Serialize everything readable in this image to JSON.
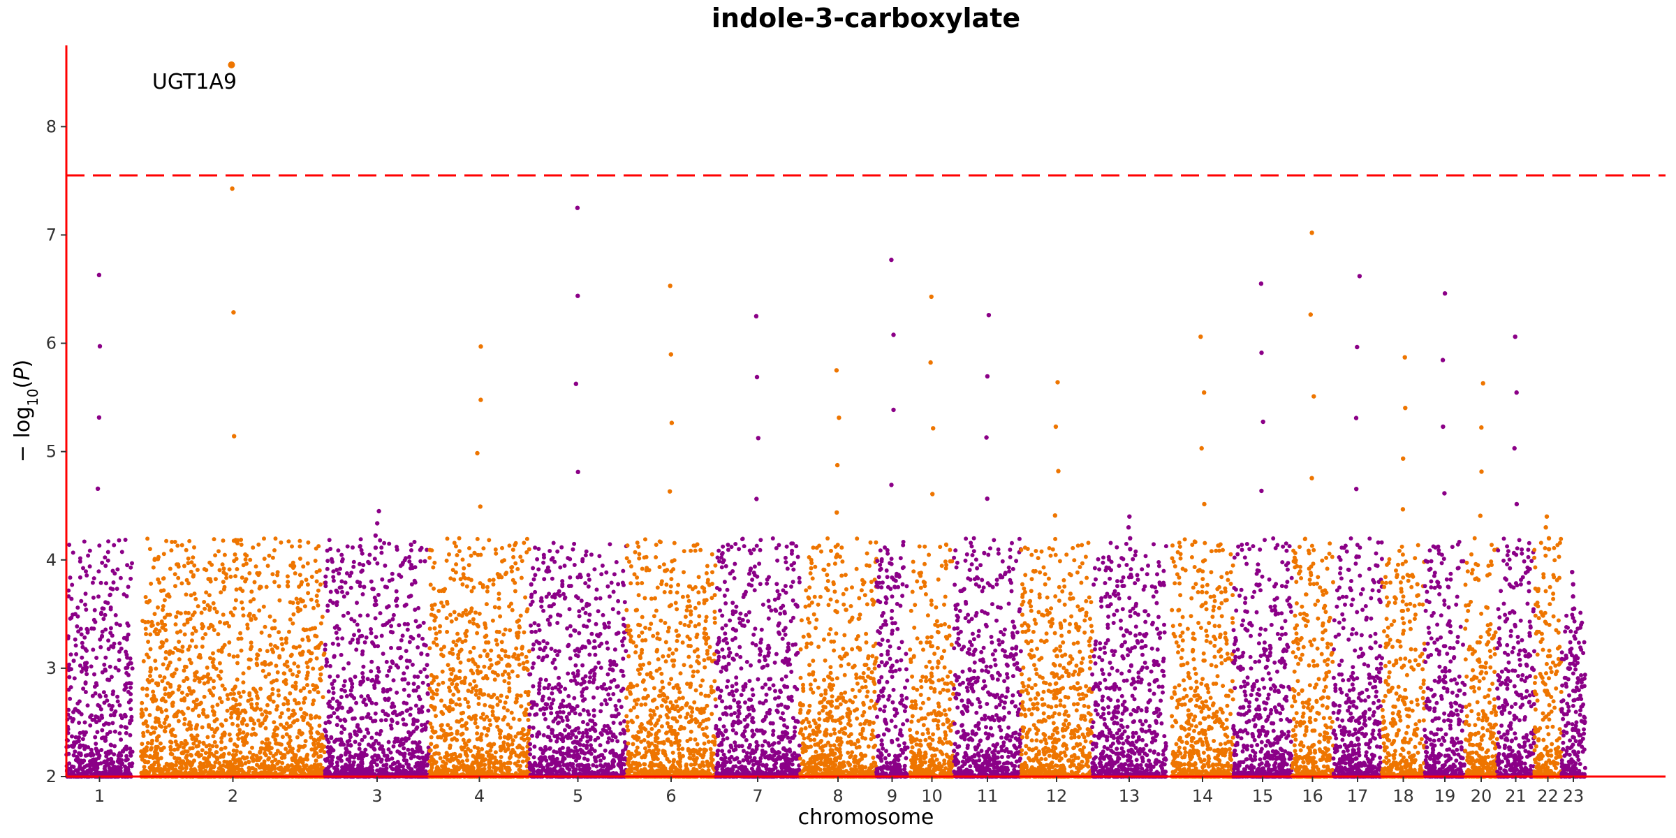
{
  "chart_data": {
    "type": "scatter",
    "title": "indole-3-carboxylate",
    "xlabel": "chromosome",
    "ylabel": "−log10(P)",
    "ylim": [
      2.0,
      8.75
    ],
    "yticks": [
      2,
      3,
      4,
      5,
      6,
      7,
      8
    ],
    "significance_threshold": 7.55,
    "grid": false,
    "colors": {
      "odd": "#8B0087",
      "even": "#EE7500",
      "axis": "#FF0000",
      "threshold": "#FF0000"
    },
    "chromosomes": [
      "1",
      "2",
      "3",
      "4",
      "5",
      "6",
      "7",
      "8",
      "9",
      "10",
      "11",
      "12",
      "13",
      "14",
      "15",
      "16",
      "17",
      "18",
      "19",
      "20",
      "21",
      "22",
      "23"
    ],
    "chromosome_max_y": [
      6.63,
      8.57,
      4.45,
      5.97,
      7.25,
      6.53,
      6.25,
      5.75,
      6.77,
      6.43,
      6.26,
      5.64,
      4.4,
      6.06,
      6.55,
      7.02,
      6.62,
      5.87,
      6.46,
      5.63,
      6.06,
      4.4,
      3.55
    ],
    "annotations": [
      {
        "label": "UGT1A9",
        "chromosome": "2",
        "y": 8.57
      }
    ]
  }
}
